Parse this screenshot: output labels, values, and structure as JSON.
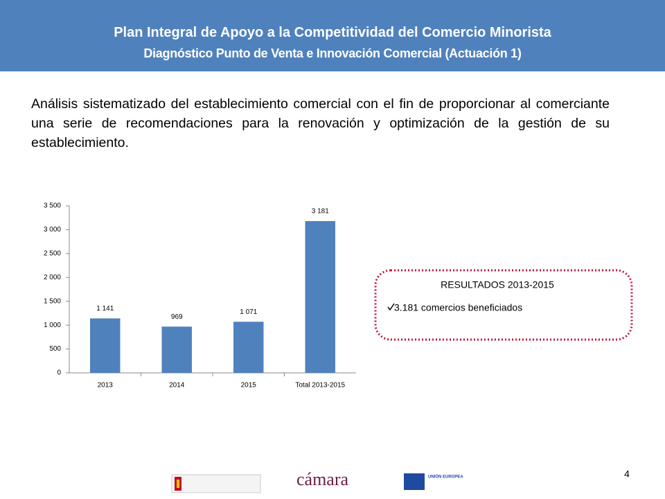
{
  "header": {
    "title": "Plan Integral de Apoyo a la Competitividad del Comercio Minorista",
    "subtitle": "Diagnóstico Punto de Venta e Innovación Comercial (Actuación 1)"
  },
  "body": "Análisis sistematizado del establecimiento comercial con el fin de proporcionar al comerciante una serie de recomendaciones para la renovación y optimización de la gestión de su establecimiento.",
  "chart_data": {
    "type": "bar",
    "categories": [
      "2013",
      "2014",
      "2015",
      "Total 2013-2015"
    ],
    "values": [
      1141,
      969,
      1071,
      3181
    ],
    "value_labels": [
      "1 141",
      "969",
      "1 071",
      "3 181"
    ],
    "color": "#4f81bd",
    "ylim": [
      0,
      3500
    ],
    "yticks": [
      0,
      500,
      {
        "value": 1000,
        "label": "1 000"
      },
      {
        "value": 1500,
        "label": "1 500"
      },
      {
        "value": 2000,
        "label": "2 000"
      },
      {
        "value": 2500,
        "label": "2 500"
      },
      {
        "value": 3000,
        "label": "3 000"
      },
      {
        "value": 3500,
        "label": "3 500"
      }
    ],
    "grid": false
  },
  "results": {
    "title": "RESULTADOS 2013-2015",
    "item": "3.181 comercios beneficiados"
  },
  "footer": {
    "page": "4",
    "logo_camara": "cámara",
    "logo_eu": "UNIÓN EUROPEA"
  }
}
